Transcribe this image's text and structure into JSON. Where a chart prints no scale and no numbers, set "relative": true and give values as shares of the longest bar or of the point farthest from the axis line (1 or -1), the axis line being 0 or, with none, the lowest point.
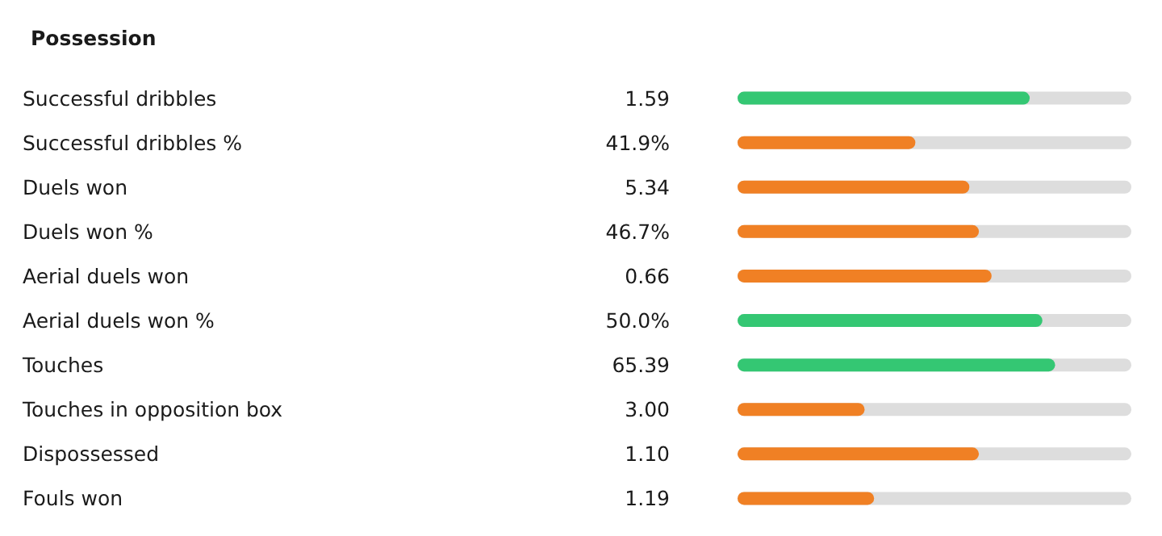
{
  "chart_data": {
    "type": "bar",
    "orientation": "horizontal",
    "relative": true,
    "title": "Possession",
    "categories": [
      "Successful dribbles",
      "Successful dribbles %",
      "Duels won",
      "Duels won %",
      "Aerial duels won",
      "Aerial duels won %",
      "Touches",
      "Touches in opposition box",
      "Dispossessed",
      "Fouls won"
    ],
    "values": [
      0.92,
      0.56,
      0.73,
      0.76,
      0.8,
      0.96,
      1,
      0.4,
      0.76,
      0.43
    ],
    "colors": [
      "#34c773",
      "#f08024",
      "#f08024",
      "#f08024",
      "#f08024",
      "#34c773",
      "#34c773",
      "#f08024",
      "#f08024",
      "#f08024"
    ],
    "annotations": [
      "1.59",
      "41.9%",
      "5.34",
      "46.7%",
      "0.66",
      "50.0%",
      "65.39",
      "3.00",
      "1.10",
      "1.19"
    ]
  }
}
